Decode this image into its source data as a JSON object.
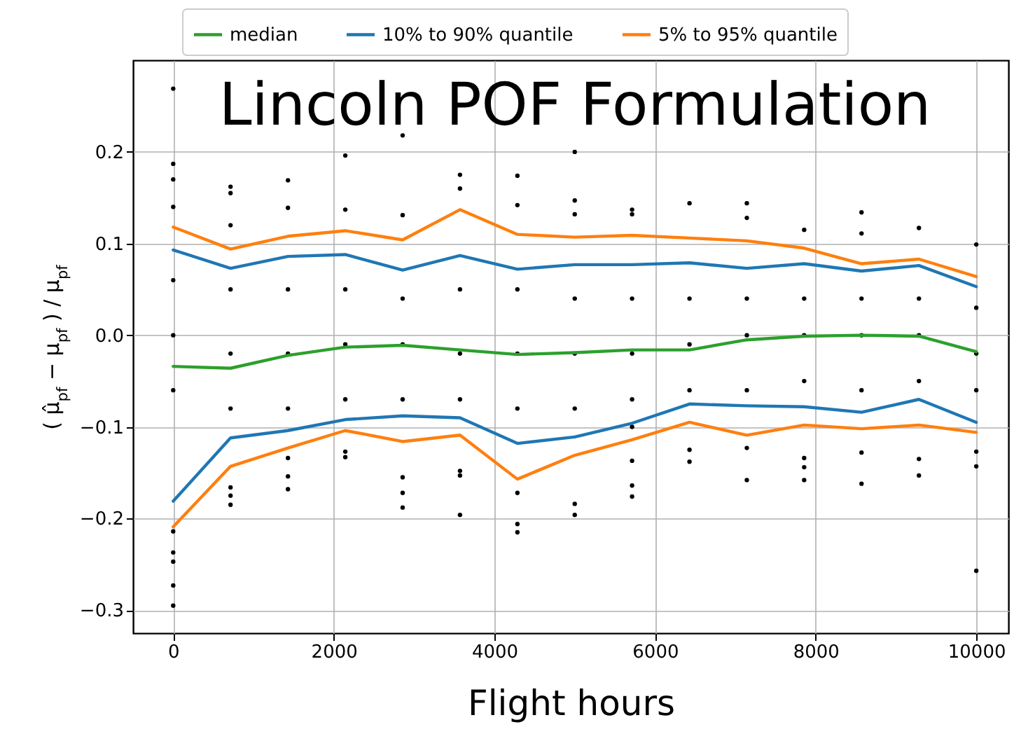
{
  "chart_data": {
    "type": "line",
    "title": "Lincoln POF Formulation",
    "xlabel": "Flight hours",
    "ylabel": "( μ̂$_{pf}$ − μ$_{pf}$ ) / μ$_{pf}$",
    "x": [
      0,
      714,
      1429,
      2143,
      2857,
      3571,
      4286,
      5000,
      5714,
      6429,
      7143,
      7857,
      8571,
      9286,
      10000
    ],
    "xlim": [
      -500,
      10400
    ],
    "xticks": [
      0,
      2000,
      4000,
      6000,
      8000,
      10000
    ],
    "ylim": [
      -0.325,
      0.3
    ],
    "yticks": [
      {
        "value": -0.3,
        "label": "−0.3"
      },
      {
        "value": -0.2,
        "label": "−0.2"
      },
      {
        "value": -0.1,
        "label": "−0.1"
      },
      {
        "value": 0,
        "label": "0.0"
      },
      0.1,
      0.2
    ],
    "grid": true,
    "legend": "top",
    "series": [
      {
        "type": "scatter",
        "marker": "circle",
        "color": "#000000",
        "x": [
          0,
          0,
          0,
          0,
          0,
          0,
          0,
          0,
          0,
          0,
          0,
          0,
          714,
          714,
          714,
          714,
          714,
          714,
          714,
          714,
          714,
          1429,
          1429,
          1429,
          1429,
          1429,
          1429,
          1429,
          1429,
          2143,
          2143,
          2143,
          2143,
          2143,
          2143,
          2143,
          2857,
          2857,
          2857,
          2857,
          2857,
          2857,
          2857,
          2857,
          3571,
          3571,
          3571,
          3571,
          3571,
          3571,
          3571,
          3571,
          4286,
          4286,
          4286,
          4286,
          4286,
          4286,
          4286,
          4286,
          5000,
          5000,
          5000,
          5000,
          5000,
          5000,
          5000,
          5000,
          5714,
          5714,
          5714,
          5714,
          5714,
          5714,
          5714,
          5714,
          5714,
          6429,
          6429,
          6429,
          6429,
          6429,
          6429,
          7143,
          7143,
          7143,
          7143,
          7143,
          7143,
          7143,
          7857,
          7857,
          7857,
          7857,
          7857,
          7857,
          7857,
          8571,
          8571,
          8571,
          8571,
          8571,
          8571,
          8571,
          9286,
          9286,
          9286,
          9286,
          9286,
          9286,
          10000,
          10000,
          10000,
          10000,
          10000,
          10000,
          10000
        ],
        "values": [
          0.269,
          0.187,
          0.17,
          0.14,
          0.06,
          0.0,
          -0.06,
          -0.214,
          -0.237,
          -0.247,
          -0.273,
          -0.295,
          0.162,
          0.155,
          0.12,
          0.05,
          -0.02,
          -0.08,
          -0.166,
          -0.175,
          -0.185,
          0.169,
          0.139,
          0.05,
          -0.02,
          -0.08,
          -0.134,
          -0.154,
          -0.168,
          0.196,
          0.137,
          0.05,
          -0.01,
          -0.07,
          -0.127,
          -0.133,
          0.218,
          0.131,
          0.04,
          -0.01,
          -0.07,
          -0.155,
          -0.172,
          -0.188,
          0.175,
          0.16,
          0.05,
          -0.02,
          -0.07,
          -0.148,
          -0.153,
          -0.196,
          0.174,
          0.142,
          0.05,
          -0.02,
          -0.08,
          -0.172,
          -0.206,
          -0.215,
          0.2,
          0.147,
          0.132,
          0.04,
          -0.02,
          -0.08,
          -0.184,
          -0.196,
          0.137,
          0.132,
          0.04,
          -0.02,
          -0.07,
          -0.137,
          -0.164,
          -0.176,
          -0.1,
          0.144,
          0.04,
          -0.01,
          -0.06,
          -0.125,
          -0.138,
          0.144,
          0.128,
          0.04,
          0.0,
          -0.06,
          -0.123,
          -0.158,
          0.115,
          0.04,
          0.0,
          -0.05,
          -0.134,
          -0.144,
          -0.158,
          0.134,
          0.111,
          0.04,
          0.0,
          -0.06,
          -0.128,
          -0.162,
          0.117,
          0.04,
          0.0,
          -0.05,
          -0.135,
          -0.153,
          0.099,
          0.03,
          -0.02,
          -0.06,
          -0.127,
          -0.143,
          -0.257
        ]
      },
      {
        "name": "median",
        "color": "#2ca02c",
        "values": [
          -0.034,
          -0.036,
          -0.022,
          -0.013,
          -0.011,
          -0.016,
          -0.021,
          -0.019,
          -0.016,
          -0.016,
          -0.005,
          -0.001,
          0.0,
          -0.001,
          -0.018
        ]
      },
      {
        "name": "10% to 90% quantile",
        "color": "#1f77b4",
        "values": [
          0.093,
          0.073,
          0.086,
          0.088,
          0.071,
          0.087,
          0.072,
          0.077,
          0.077,
          0.079,
          0.073,
          0.078,
          0.07,
          0.076,
          0.053
        ]
      },
      {
        "color": "#1f77b4",
        "values": [
          -0.181,
          -0.112,
          -0.104,
          -0.092,
          -0.088,
          -0.09,
          -0.118,
          -0.111,
          -0.096,
          -0.075,
          -0.077,
          -0.078,
          -0.084,
          -0.07,
          -0.095
        ]
      },
      {
        "name": "5% to 95% quantile",
        "color": "#ff7f0e",
        "values": [
          0.118,
          0.094,
          0.108,
          0.114,
          0.104,
          0.137,
          0.11,
          0.107,
          0.109,
          0.106,
          0.103,
          0.095,
          0.078,
          0.083,
          0.064
        ]
      },
      {
        "color": "#ff7f0e",
        "values": [
          -0.209,
          -0.143,
          -0.123,
          -0.104,
          -0.116,
          -0.109,
          -0.157,
          -0.131,
          -0.114,
          -0.095,
          -0.109,
          -0.098,
          -0.102,
          -0.098,
          -0.106
        ]
      }
    ]
  }
}
